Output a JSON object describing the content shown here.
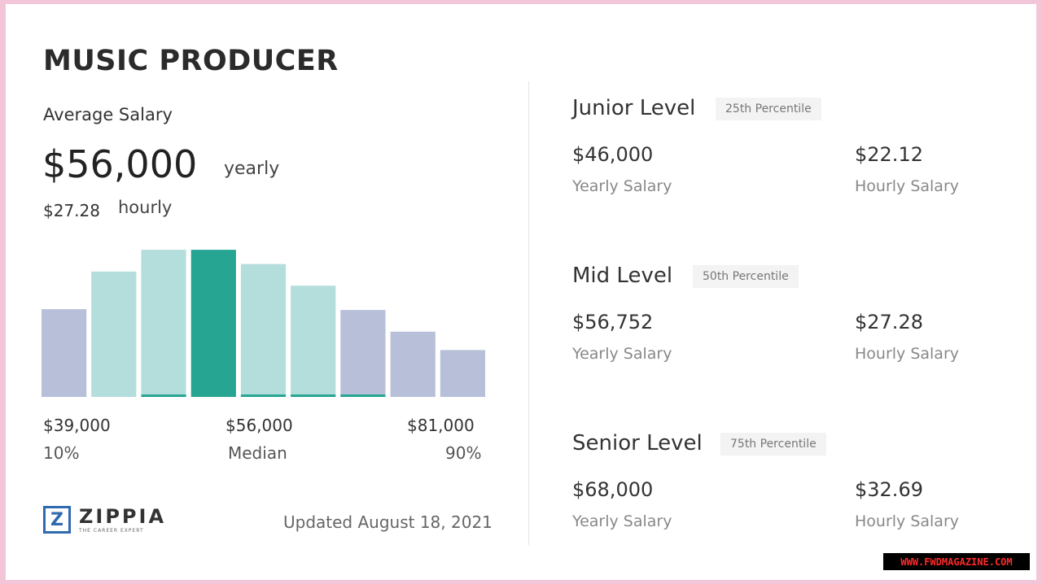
{
  "title": "MUSIC PRODUCER",
  "average": {
    "label": "Average Salary",
    "yearly_value": "$56,000",
    "yearly_unit": "yearly",
    "hourly_value": "$27.28",
    "hourly_unit": "hourly"
  },
  "chart_data": {
    "type": "bar",
    "values": [
      105,
      150,
      176,
      176,
      159,
      133,
      104,
      78,
      56
    ],
    "highlight_index": 3,
    "ylim": [
      0,
      180
    ],
    "grid": false,
    "ticks": [
      {
        "value": "$39,000",
        "label": "10%"
      },
      {
        "value": "$56,000",
        "label": "Median"
      },
      {
        "value": "$81,000",
        "label": "90%"
      }
    ],
    "colors": {
      "outer": "#b7bfd9",
      "inner": "#b4dedb",
      "median": "#27a593",
      "baseline": "#27a593"
    }
  },
  "footer": {
    "logo_name": "ZIPPIA",
    "logo_tagline": "THE CAREER EXPERT",
    "logo_icon": "zippia-z-icon",
    "updated": "Updated August 18, 2021"
  },
  "levels": [
    {
      "name": "Junior Level",
      "percentile": "25th Percentile",
      "yearly_value": "$46,000",
      "yearly_label": "Yearly Salary",
      "hourly_value": "$22.12",
      "hourly_label": "Hourly Salary"
    },
    {
      "name": "Mid Level",
      "percentile": "50th Percentile",
      "yearly_value": "$56,752",
      "yearly_label": "Yearly Salary",
      "hourly_value": "$27.28",
      "hourly_label": "Hourly Salary"
    },
    {
      "name": "Senior Level",
      "percentile": "75th Percentile",
      "yearly_value": "$68,000",
      "yearly_label": "Yearly Salary",
      "hourly_value": "$32.69",
      "hourly_label": "Hourly Salary"
    }
  ],
  "watermark": "WWW.FWDMAGAZINE.COM"
}
